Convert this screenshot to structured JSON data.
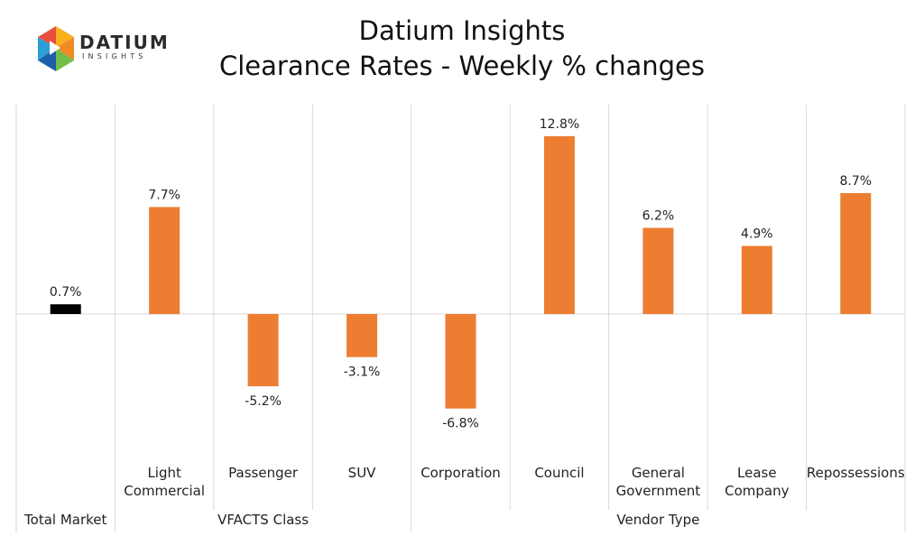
{
  "logo": {
    "word": "DATIUM",
    "sub": "INSIGHTS",
    "colors": [
      "#f7b11e",
      "#e84e3c",
      "#2b9fd8",
      "#6fbe4a",
      "#1d5fa8",
      "#f08a24"
    ]
  },
  "chart_data": {
    "type": "bar",
    "title": "Datium Insights",
    "subtitle": "Clearance Rates - Weekly % changes",
    "unit": "%",
    "categories": [
      "Total Market",
      "Light Commercial",
      "Passenger",
      "SUV",
      "Corporation",
      "Council",
      "General Government",
      "Lease Company",
      "Repossessions"
    ],
    "category_lines": [
      [
        "Total Market"
      ],
      [
        "Light",
        "Commercial"
      ],
      [
        "Passenger"
      ],
      [
        "SUV"
      ],
      [
        "Corporation"
      ],
      [
        "Council"
      ],
      [
        "General",
        "Government"
      ],
      [
        "Lease",
        "Company"
      ],
      [
        "Repossessions"
      ]
    ],
    "values": [
      0.7,
      7.7,
      -5.2,
      -3.1,
      -6.8,
      12.8,
      6.2,
      4.9,
      8.7
    ],
    "value_labels": [
      "0.7%",
      "7.7%",
      "-5.2%",
      "-3.1%",
      "-6.8%",
      "12.8%",
      "6.2%",
      "4.9%",
      "8.7%"
    ],
    "bar_colors": [
      "#000000",
      "#ed7d31",
      "#ed7d31",
      "#ed7d31",
      "#ed7d31",
      "#ed7d31",
      "#ed7d31",
      "#ed7d31",
      "#ed7d31"
    ],
    "groups": [
      {
        "label": "",
        "start": 0,
        "end": 0
      },
      {
        "label": "VFACTS Class",
        "start": 1,
        "end": 3
      },
      {
        "label": "Vendor Type",
        "start": 4,
        "end": 8
      }
    ],
    "ylim": [
      -10,
      15
    ],
    "gridlines": true,
    "legend": "none"
  }
}
